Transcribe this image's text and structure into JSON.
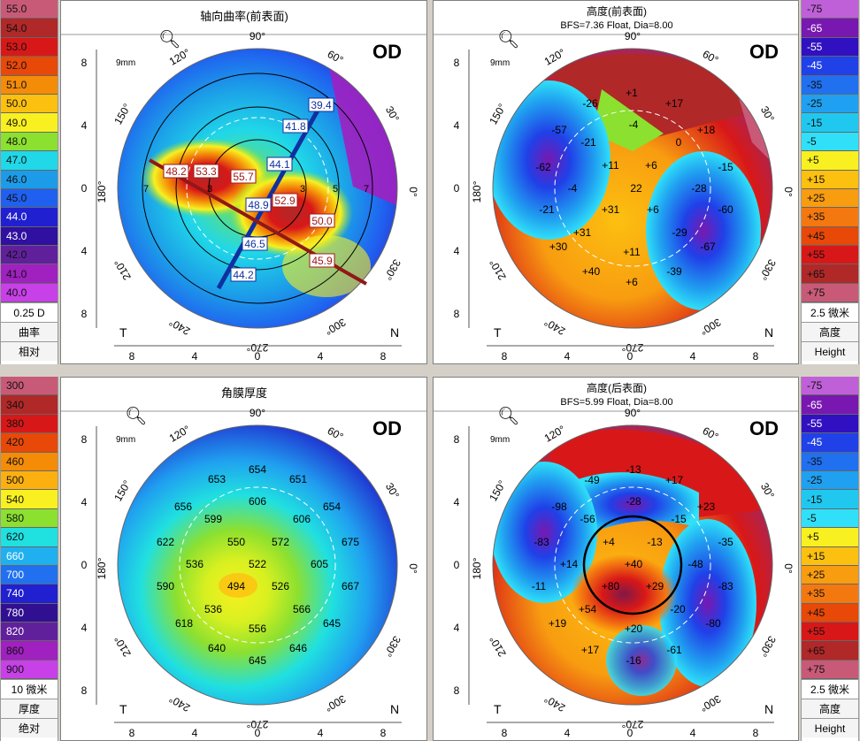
{
  "panels": {
    "axial": {
      "title": "轴向曲率(前表面)",
      "eye": "OD",
      "zoom": "9mm",
      "scale_values": [
        "55.0",
        "54.0",
        "53.0",
        "52.0",
        "51.0",
        "50.0",
        "49.0",
        "48.0",
        "47.0",
        "46.0",
        "45.0",
        "44.0",
        "43.0",
        "42.0",
        "41.0",
        "40.0"
      ],
      "scale_colors": [
        "#c85a78",
        "#b02828",
        "#d81818",
        "#e84808",
        "#f48c08",
        "#fcc010",
        "#f8f020",
        "#8ce030",
        "#20d8e8",
        "#1c9ce8",
        "#2060f0",
        "#2020d0",
        "#3010a0",
        "#60209c",
        "#a020c0",
        "#c840e8"
      ],
      "footer": [
        "0.25 D",
        "曲率",
        "相对"
      ],
      "angles": [
        "90°",
        "60°",
        "30°",
        "0°",
        "330°",
        "300°",
        "270°",
        "240°",
        "210°",
        "180°",
        "150°",
        "120°"
      ],
      "axis_ticks": [
        "8",
        "4",
        "0",
        "4",
        "8"
      ],
      "side_left": "T",
      "side_right": "N",
      "ring_labels": [
        "3",
        "5",
        "7"
      ],
      "values_blue": [
        "39.4",
        "41.8",
        "44.1",
        "48.9",
        "46.5",
        "44.2"
      ],
      "values_red": [
        "48.2",
        "53.3",
        "55.7",
        "52.9",
        "50.0",
        "45.9"
      ]
    },
    "front_elev": {
      "title": "高度(前表面)",
      "subtitle": "BFS=7.36 Float, Dia=8.00",
      "eye": "OD",
      "zoom": "9mm",
      "scale_values": [
        "-75",
        "-65",
        "-55",
        "-45",
        "-35",
        "-25",
        "-15",
        "-5",
        "+5",
        "+15",
        "+25",
        "+35",
        "+45",
        "+55",
        "+65",
        "+75"
      ],
      "scale_colors": [
        "#c060d8",
        "#7818b0",
        "#3010c0",
        "#2040e8",
        "#2070f0",
        "#20a0f0",
        "#20c8f0",
        "#30e0f8",
        "#f8f020",
        "#fcc010",
        "#f89c10",
        "#f47810",
        "#e84808",
        "#d81818",
        "#b02828",
        "#c85a78"
      ],
      "footer": [
        "2.5 微米",
        "高度",
        "Height"
      ],
      "values": [
        "+1",
        "+17",
        "-26",
        "-4",
        "-57",
        "+18",
        "-21",
        "0",
        "+11",
        "+6",
        "-15",
        "-62",
        "-4",
        "22",
        "-28",
        "-21",
        "+31",
        "+6",
        "-60",
        "-29",
        "+31",
        "-67",
        "+30",
        "+11",
        "+40",
        "-39",
        "+6"
      ]
    },
    "pachy": {
      "title": "角膜厚度",
      "eye": "OD",
      "zoom": "9mm",
      "scale_values": [
        "300",
        "340",
        "380",
        "420",
        "460",
        "500",
        "540",
        "580",
        "620",
        "660",
        "700",
        "740",
        "780",
        "820",
        "860",
        "900"
      ],
      "scale_colors": [
        "#c85a78",
        "#b02828",
        "#d81818",
        "#e84808",
        "#f48c08",
        "#fcb010",
        "#f8f020",
        "#8ce030",
        "#20e0e0",
        "#20b0f0",
        "#2070f0",
        "#2020d0",
        "#301090",
        "#60209c",
        "#a020c0",
        "#c840e8"
      ],
      "footer": [
        "10 微米",
        "厚度",
        "绝对"
      ],
      "values": [
        "654",
        "653",
        "651",
        "606",
        "656",
        "599",
        "606",
        "654",
        "622",
        "550",
        "572",
        "675",
        "536",
        "522",
        "605",
        "590",
        "494",
        "526",
        "667",
        "536",
        "566",
        "618",
        "556",
        "645",
        "640",
        "646",
        "645"
      ]
    },
    "back_elev": {
      "title": "高度(后表面)",
      "subtitle": "BFS=5.99 Float, Dia=8.00",
      "eye": "OD",
      "zoom": "9mm",
      "scale_values": [
        "-75",
        "-65",
        "-55",
        "-45",
        "-35",
        "-25",
        "-15",
        "-5",
        "+5",
        "+15",
        "+25",
        "+35",
        "+45",
        "+55",
        "+65",
        "+75"
      ],
      "scale_colors": [
        "#c060d8",
        "#7818b0",
        "#3010c0",
        "#2040e8",
        "#2070f0",
        "#20a0f0",
        "#20c8f0",
        "#30e0f8",
        "#f8f020",
        "#fcc010",
        "#f89c10",
        "#f47810",
        "#e84808",
        "#d81818",
        "#b02828",
        "#c85a78"
      ],
      "footer": [
        "2.5 微米",
        "高度",
        "Height"
      ],
      "values": [
        "-13",
        "-49",
        "+17",
        "-28",
        "-98",
        "+23",
        "-56",
        "-15",
        "-83",
        "+4",
        "-13",
        "-35",
        "+14",
        "+40",
        "-48",
        "-11",
        "+80",
        "+29",
        "-83",
        "+54",
        "-20",
        "+19",
        "+20",
        "-80",
        "+17",
        "-16",
        "-61"
      ]
    }
  }
}
